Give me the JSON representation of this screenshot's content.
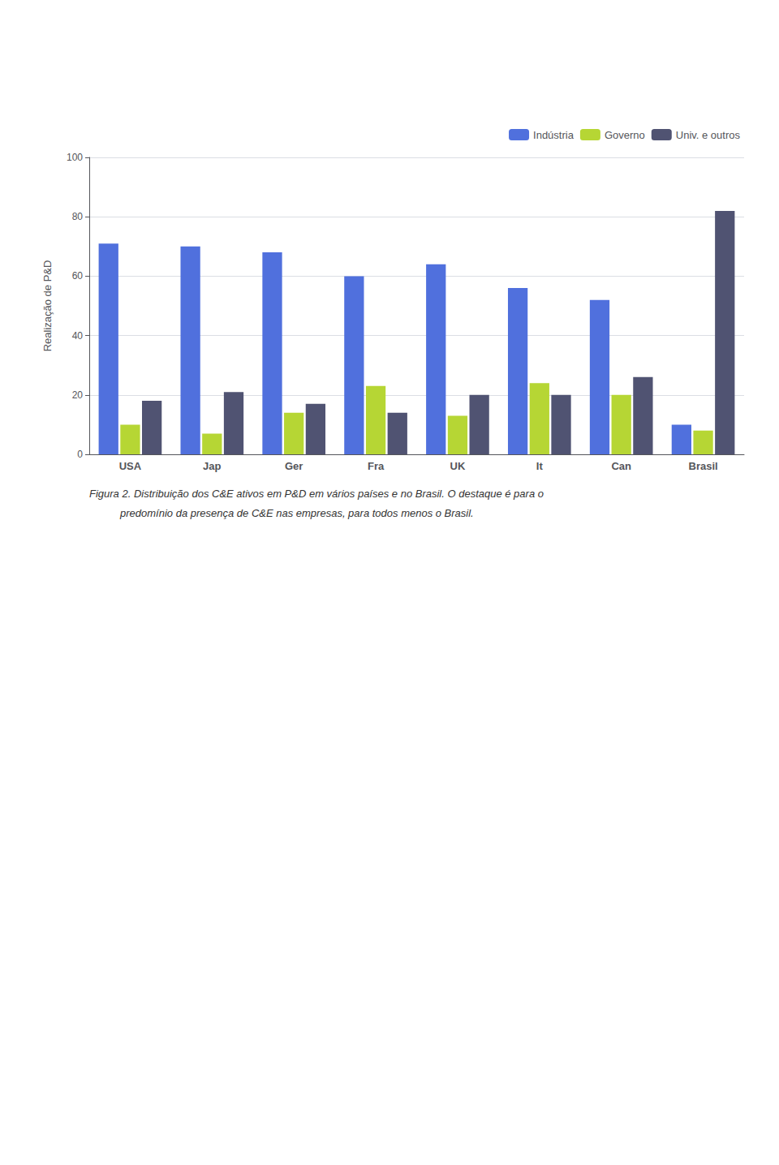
{
  "chart_data": {
    "type": "bar",
    "categories": [
      "USA",
      "Jap",
      "Ger",
      "Fra",
      "UK",
      "It",
      "Can",
      "Brasil"
    ],
    "series": [
      {
        "name": "Indústria",
        "values": [
          71,
          70,
          68,
          60,
          64,
          56,
          52,
          10
        ]
      },
      {
        "name": "Governo",
        "values": [
          10,
          7,
          14,
          23,
          13,
          24,
          20,
          8
        ]
      },
      {
        "name": "Univ. e outros",
        "values": [
          18,
          21,
          17,
          14,
          20,
          20,
          26,
          82
        ]
      }
    ],
    "y_label": "Realização de P&D",
    "ylim": [
      0,
      100
    ],
    "yticks": [
      0,
      20,
      40,
      60,
      80,
      100
    ],
    "grid": true,
    "legend": "upper right",
    "annotations": [
      "Figura 2. Distribuição dos C&E ativos em P&D em vários países e no Brasil. O destaque é para o",
      "predomínio da presença de C&E nas empresas, para todos menos o Brasil."
    ]
  }
}
